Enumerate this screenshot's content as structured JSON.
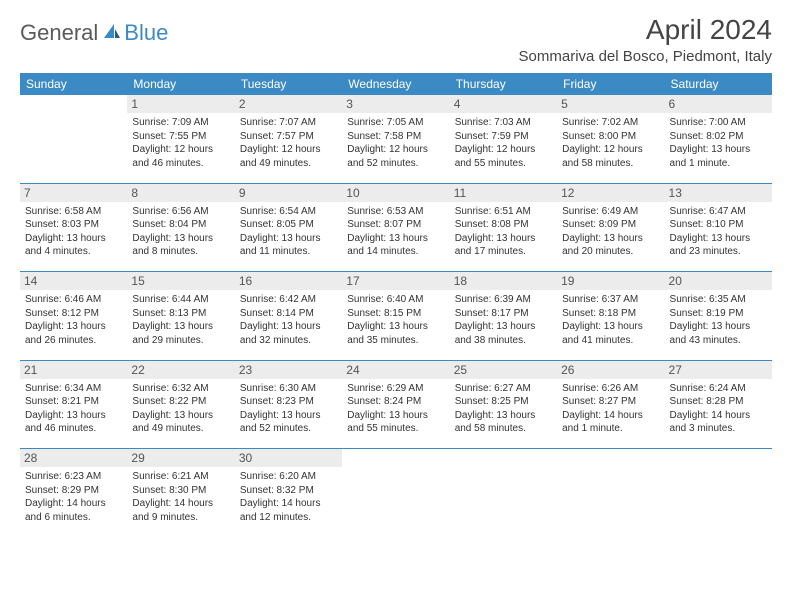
{
  "brand": {
    "textA": "General",
    "textB": "Blue"
  },
  "title": "April 2024",
  "location": "Sommariva del Bosco, Piedmont, Italy",
  "colors": {
    "header_bg": "#3b8ac4",
    "header_text": "#ffffff",
    "daynum_bg": "#ececec",
    "text": "#333333",
    "rule": "#3b8ac4",
    "logo_gray": "#5a5a5a",
    "logo_blue": "#3b8ac4"
  },
  "weekdays": [
    "Sunday",
    "Monday",
    "Tuesday",
    "Wednesday",
    "Thursday",
    "Friday",
    "Saturday"
  ],
  "weeks": [
    [
      {
        "n": "",
        "lines": [
          "",
          "",
          "",
          ""
        ]
      },
      {
        "n": "1",
        "lines": [
          "Sunrise: 7:09 AM",
          "Sunset: 7:55 PM",
          "Daylight: 12 hours",
          "and 46 minutes."
        ]
      },
      {
        "n": "2",
        "lines": [
          "Sunrise: 7:07 AM",
          "Sunset: 7:57 PM",
          "Daylight: 12 hours",
          "and 49 minutes."
        ]
      },
      {
        "n": "3",
        "lines": [
          "Sunrise: 7:05 AM",
          "Sunset: 7:58 PM",
          "Daylight: 12 hours",
          "and 52 minutes."
        ]
      },
      {
        "n": "4",
        "lines": [
          "Sunrise: 7:03 AM",
          "Sunset: 7:59 PM",
          "Daylight: 12 hours",
          "and 55 minutes."
        ]
      },
      {
        "n": "5",
        "lines": [
          "Sunrise: 7:02 AM",
          "Sunset: 8:00 PM",
          "Daylight: 12 hours",
          "and 58 minutes."
        ]
      },
      {
        "n": "6",
        "lines": [
          "Sunrise: 7:00 AM",
          "Sunset: 8:02 PM",
          "Daylight: 13 hours",
          "and 1 minute."
        ]
      }
    ],
    [
      {
        "n": "7",
        "lines": [
          "Sunrise: 6:58 AM",
          "Sunset: 8:03 PM",
          "Daylight: 13 hours",
          "and 4 minutes."
        ]
      },
      {
        "n": "8",
        "lines": [
          "Sunrise: 6:56 AM",
          "Sunset: 8:04 PM",
          "Daylight: 13 hours",
          "and 8 minutes."
        ]
      },
      {
        "n": "9",
        "lines": [
          "Sunrise: 6:54 AM",
          "Sunset: 8:05 PM",
          "Daylight: 13 hours",
          "and 11 minutes."
        ]
      },
      {
        "n": "10",
        "lines": [
          "Sunrise: 6:53 AM",
          "Sunset: 8:07 PM",
          "Daylight: 13 hours",
          "and 14 minutes."
        ]
      },
      {
        "n": "11",
        "lines": [
          "Sunrise: 6:51 AM",
          "Sunset: 8:08 PM",
          "Daylight: 13 hours",
          "and 17 minutes."
        ]
      },
      {
        "n": "12",
        "lines": [
          "Sunrise: 6:49 AM",
          "Sunset: 8:09 PM",
          "Daylight: 13 hours",
          "and 20 minutes."
        ]
      },
      {
        "n": "13",
        "lines": [
          "Sunrise: 6:47 AM",
          "Sunset: 8:10 PM",
          "Daylight: 13 hours",
          "and 23 minutes."
        ]
      }
    ],
    [
      {
        "n": "14",
        "lines": [
          "Sunrise: 6:46 AM",
          "Sunset: 8:12 PM",
          "Daylight: 13 hours",
          "and 26 minutes."
        ]
      },
      {
        "n": "15",
        "lines": [
          "Sunrise: 6:44 AM",
          "Sunset: 8:13 PM",
          "Daylight: 13 hours",
          "and 29 minutes."
        ]
      },
      {
        "n": "16",
        "lines": [
          "Sunrise: 6:42 AM",
          "Sunset: 8:14 PM",
          "Daylight: 13 hours",
          "and 32 minutes."
        ]
      },
      {
        "n": "17",
        "lines": [
          "Sunrise: 6:40 AM",
          "Sunset: 8:15 PM",
          "Daylight: 13 hours",
          "and 35 minutes."
        ]
      },
      {
        "n": "18",
        "lines": [
          "Sunrise: 6:39 AM",
          "Sunset: 8:17 PM",
          "Daylight: 13 hours",
          "and 38 minutes."
        ]
      },
      {
        "n": "19",
        "lines": [
          "Sunrise: 6:37 AM",
          "Sunset: 8:18 PM",
          "Daylight: 13 hours",
          "and 41 minutes."
        ]
      },
      {
        "n": "20",
        "lines": [
          "Sunrise: 6:35 AM",
          "Sunset: 8:19 PM",
          "Daylight: 13 hours",
          "and 43 minutes."
        ]
      }
    ],
    [
      {
        "n": "21",
        "lines": [
          "Sunrise: 6:34 AM",
          "Sunset: 8:21 PM",
          "Daylight: 13 hours",
          "and 46 minutes."
        ]
      },
      {
        "n": "22",
        "lines": [
          "Sunrise: 6:32 AM",
          "Sunset: 8:22 PM",
          "Daylight: 13 hours",
          "and 49 minutes."
        ]
      },
      {
        "n": "23",
        "lines": [
          "Sunrise: 6:30 AM",
          "Sunset: 8:23 PM",
          "Daylight: 13 hours",
          "and 52 minutes."
        ]
      },
      {
        "n": "24",
        "lines": [
          "Sunrise: 6:29 AM",
          "Sunset: 8:24 PM",
          "Daylight: 13 hours",
          "and 55 minutes."
        ]
      },
      {
        "n": "25",
        "lines": [
          "Sunrise: 6:27 AM",
          "Sunset: 8:25 PM",
          "Daylight: 13 hours",
          "and 58 minutes."
        ]
      },
      {
        "n": "26",
        "lines": [
          "Sunrise: 6:26 AM",
          "Sunset: 8:27 PM",
          "Daylight: 14 hours",
          "and 1 minute."
        ]
      },
      {
        "n": "27",
        "lines": [
          "Sunrise: 6:24 AM",
          "Sunset: 8:28 PM",
          "Daylight: 14 hours",
          "and 3 minutes."
        ]
      }
    ],
    [
      {
        "n": "28",
        "lines": [
          "Sunrise: 6:23 AM",
          "Sunset: 8:29 PM",
          "Daylight: 14 hours",
          "and 6 minutes."
        ]
      },
      {
        "n": "29",
        "lines": [
          "Sunrise: 6:21 AM",
          "Sunset: 8:30 PM",
          "Daylight: 14 hours",
          "and 9 minutes."
        ]
      },
      {
        "n": "30",
        "lines": [
          "Sunrise: 6:20 AM",
          "Sunset: 8:32 PM",
          "Daylight: 14 hours",
          "and 12 minutes."
        ]
      },
      {
        "n": "",
        "lines": [
          "",
          "",
          "",
          ""
        ]
      },
      {
        "n": "",
        "lines": [
          "",
          "",
          "",
          ""
        ]
      },
      {
        "n": "",
        "lines": [
          "",
          "",
          "",
          ""
        ]
      },
      {
        "n": "",
        "lines": [
          "",
          "",
          "",
          ""
        ]
      }
    ]
  ]
}
